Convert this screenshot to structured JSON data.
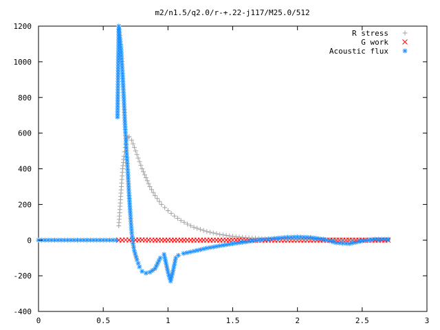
{
  "chart_data": {
    "type": "scatter",
    "title": "m2/n1.5/q2.0/r-+.22-j117/M25.0/512",
    "xlabel": "",
    "ylabel": "",
    "xlim": [
      0,
      3
    ],
    "ylim": [
      -400,
      1200
    ],
    "xticks": [
      0,
      0.5,
      1,
      1.5,
      2,
      2.5,
      3
    ],
    "xtick_labels": [
      "0",
      "0.5",
      "1",
      "1.5",
      "2",
      "2.5",
      "3"
    ],
    "yticks": [
      -400,
      -200,
      0,
      200,
      400,
      600,
      800,
      1000,
      1200
    ],
    "ytick_labels": [
      "-400",
      "-200",
      "0",
      "200",
      "400",
      "600",
      "800",
      "1000",
      "1200"
    ],
    "grid": false,
    "legend_position": "top-right",
    "series": [
      {
        "name": "R stress",
        "marker": "plus",
        "color": "#a0a0a0",
        "x": [
          0.62,
          0.63,
          0.64,
          0.65,
          0.66,
          0.67,
          0.68,
          0.69,
          0.7,
          0.72,
          0.74,
          0.76,
          0.78,
          0.8,
          0.83,
          0.86,
          0.9,
          0.95,
          1.0,
          1.05,
          1.1,
          1.15,
          1.2,
          1.3,
          1.4,
          1.5,
          1.6,
          1.7,
          1.8,
          1.9,
          2.0,
          2.2,
          2.4,
          2.7
        ],
        "y": [
          80,
          190,
          300,
          400,
          470,
          520,
          560,
          575,
          580,
          560,
          520,
          480,
          440,
          400,
          350,
          300,
          250,
          200,
          165,
          135,
          110,
          90,
          72,
          48,
          32,
          21,
          14,
          9,
          6,
          4,
          3,
          2,
          1,
          1
        ]
      },
      {
        "name": "G work",
        "marker": "x",
        "color": "#ff0000",
        "x": [
          0.62,
          0.7,
          0.8,
          0.9,
          1.0,
          1.1,
          1.2,
          1.3,
          1.4,
          1.5,
          1.6,
          1.7,
          1.8,
          1.9,
          2.0,
          2.1,
          2.2,
          2.3,
          2.4,
          2.5,
          2.6,
          2.7
        ],
        "y": [
          0,
          1,
          1,
          0,
          0,
          0,
          0,
          0,
          0,
          0,
          0,
          0,
          0,
          0,
          0,
          0,
          0,
          0,
          0,
          0,
          0,
          0
        ]
      },
      {
        "name": "Acoustic flux",
        "marker": "star",
        "color": "#1e90ff",
        "x": [
          0.0,
          0.1,
          0.2,
          0.3,
          0.4,
          0.5,
          0.55,
          0.6,
          0.61,
          0.62,
          0.63,
          0.64,
          0.65,
          0.66,
          0.67,
          0.68,
          0.69,
          0.7,
          0.71,
          0.72,
          0.73,
          0.74,
          0.76,
          0.78,
          0.8,
          0.83,
          0.86,
          0.9,
          0.94,
          0.97,
          1.0,
          1.02,
          1.04,
          1.06,
          1.08,
          1.12,
          1.2,
          1.3,
          1.4,
          1.5,
          1.6,
          1.7,
          1.8,
          1.9,
          2.0,
          2.1,
          2.2,
          2.3,
          2.4,
          2.5,
          2.6,
          2.7
        ],
        "y": [
          0,
          0,
          0,
          0,
          0,
          0,
          0,
          0,
          690,
          1200,
          1130,
          1050,
          920,
          780,
          620,
          500,
          380,
          250,
          140,
          40,
          -20,
          -60,
          -110,
          -150,
          -175,
          -185,
          -180,
          -160,
          -100,
          -80,
          -180,
          -230,
          -170,
          -100,
          -85,
          -75,
          -62,
          -45,
          -32,
          -20,
          -10,
          0,
          8,
          15,
          18,
          15,
          5,
          -15,
          -20,
          -5,
          5,
          5
        ]
      }
    ]
  }
}
